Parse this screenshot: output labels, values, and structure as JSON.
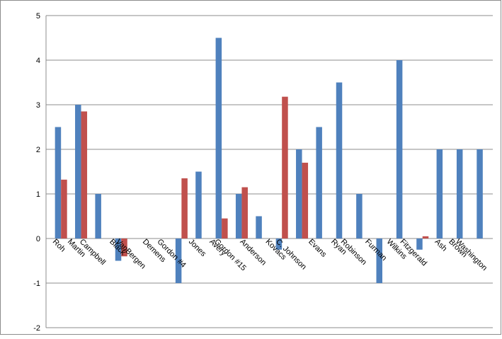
{
  "chart_data": {
    "type": "bar",
    "categories": [
      "Roh",
      "Martin",
      "Campbell",
      "Black",
      "VanBergen",
      "Demens",
      "Gordon #4",
      "Jones",
      "Avery",
      "Gordon #15",
      "Anderson",
      "Kovacs",
      "C. Johnson",
      "Evans",
      "Ryan",
      "Robinson",
      "Furman",
      "Wilkins",
      "Fitzgerald",
      "Ash",
      "Brown",
      "Washington"
    ],
    "series": [
      {
        "color": "#4f81bd",
        "values": [
          2.5,
          3,
          1,
          -0.5,
          0,
          0,
          -1,
          1.5,
          4.5,
          1,
          0.5,
          -0.25,
          2,
          2.5,
          3.5,
          1,
          -1,
          4,
          -0.25,
          2,
          2,
          2
        ]
      },
      {
        "color": "#c0504d",
        "values": [
          1.32,
          2.85,
          0,
          -0.4,
          0,
          0,
          1.35,
          0,
          0.45,
          1.15,
          0,
          3.18,
          1.7,
          0,
          0,
          0,
          0,
          0,
          0.05,
          0,
          0,
          0
        ]
      }
    ],
    "ylim": [
      -2,
      5
    ],
    "yticks": [
      -2,
      -1,
      0,
      1,
      2,
      3,
      4,
      5
    ],
    "grid": true
  }
}
